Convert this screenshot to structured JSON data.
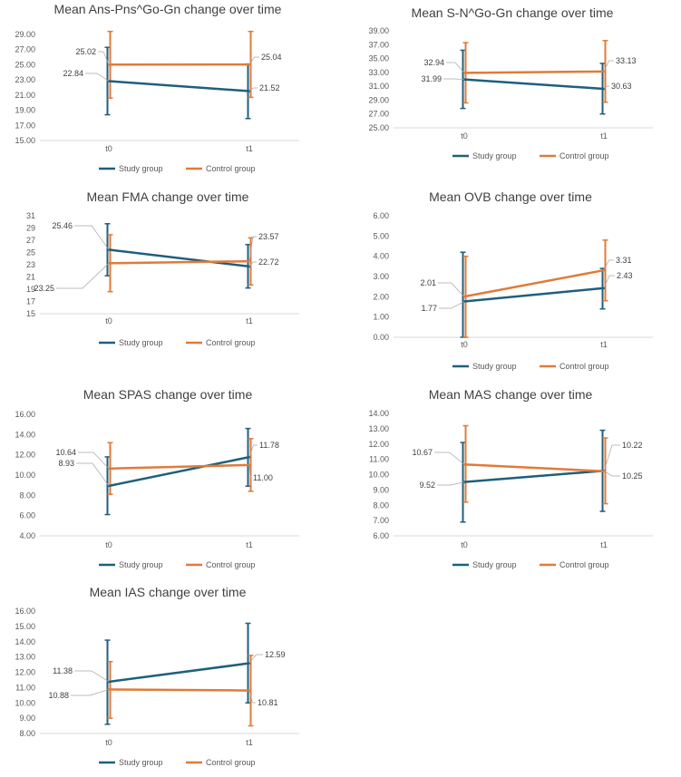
{
  "colors": {
    "study": "#1f5f7d",
    "control": "#e07b39"
  },
  "chart_data": [
    {
      "type": "line",
      "title": "Mean Ans-Pns^Go-Gn change over time",
      "categories": [
        "t0",
        "t1"
      ],
      "ylim": [
        15,
        29
      ],
      "yticks": [
        "15.00",
        "17.00",
        "19.00",
        "21.00",
        "23.00",
        "25.00",
        "27.00",
        "29.00"
      ],
      "series": [
        {
          "name": "Study group",
          "values": [
            22.84,
            21.52
          ],
          "labels": [
            "22.84",
            "21.52"
          ],
          "error": [
            [
              18.4,
              27.3
            ],
            [
              17.9,
              25.1
            ]
          ]
        },
        {
          "name": "Control group",
          "values": [
            25.02,
            25.04
          ],
          "labels": [
            "25.02",
            "25.04"
          ],
          "error": [
            [
              20.6,
              29.4
            ],
            [
              20.7,
              29.4
            ]
          ]
        }
      ]
    },
    {
      "type": "line",
      "title": "Mean S-N^Go-Gn change over time",
      "categories": [
        "t0",
        "t1"
      ],
      "ylim": [
        25,
        39
      ],
      "yticks": [
        "25.00",
        "27.00",
        "29.00",
        "31.00",
        "33.00",
        "35.00",
        "37.00",
        "39.00"
      ],
      "series": [
        {
          "name": "Study group",
          "values": [
            31.99,
            30.63
          ],
          "labels": [
            "31.99",
            "30.63"
          ],
          "error": [
            [
              27.8,
              36.2
            ],
            [
              27.0,
              34.3
            ]
          ]
        },
        {
          "name": "Control group",
          "values": [
            32.94,
            33.13
          ],
          "labels": [
            "32.94",
            "33.13"
          ],
          "error": [
            [
              28.6,
              37.3
            ],
            [
              28.7,
              37.6
            ]
          ]
        }
      ]
    },
    {
      "type": "line",
      "title": "Mean FMA change over time",
      "categories": [
        "t0",
        "t1"
      ],
      "ylim": [
        15,
        31
      ],
      "yticks": [
        "15",
        "17",
        "19",
        "21",
        "23",
        "25",
        "27",
        "29",
        "31"
      ],
      "series": [
        {
          "name": "Study group",
          "values": [
            25.46,
            22.72
          ],
          "labels": [
            "25.46",
            "22.72"
          ],
          "error": [
            [
              21.2,
              29.7
            ],
            [
              19.2,
              26.3
            ]
          ]
        },
        {
          "name": "Control group",
          "values": [
            23.25,
            23.57
          ],
          "labels": [
            "23.25",
            "23.57"
          ],
          "error": [
            [
              18.6,
              27.9
            ],
            [
              19.7,
              27.4
            ]
          ]
        }
      ]
    },
    {
      "type": "line",
      "title": "Mean OVB change over time",
      "categories": [
        "t0",
        "t1"
      ],
      "ylim": [
        0,
        6
      ],
      "yticks": [
        "0.00",
        "1.00",
        "2.00",
        "3.00",
        "4.00",
        "5.00",
        "6.00"
      ],
      "series": [
        {
          "name": "Study group",
          "values": [
            1.77,
            2.43
          ],
          "labels": [
            "1.77",
            "2.43"
          ],
          "error": [
            [
              0.0,
              4.2
            ],
            [
              1.4,
              3.4
            ]
          ]
        },
        {
          "name": "Control group",
          "values": [
            2.01,
            3.31
          ],
          "labels": [
            "2.01",
            "3.31"
          ],
          "error": [
            [
              0.0,
              4.0
            ],
            [
              1.8,
              4.8
            ]
          ]
        }
      ]
    },
    {
      "type": "line",
      "title": "Mean SPAS change over time",
      "categories": [
        "t0",
        "t1"
      ],
      "ylim": [
        4,
        16
      ],
      "yticks": [
        "4.00",
        "6.00",
        "8.00",
        "10.00",
        "12.00",
        "14.00",
        "16.00"
      ],
      "series": [
        {
          "name": "Study group",
          "values": [
            8.93,
            11.78
          ],
          "labels": [
            "8.93",
            "11.78"
          ],
          "error": [
            [
              6.1,
              11.8
            ],
            [
              8.9,
              14.6
            ]
          ]
        },
        {
          "name": "Control group",
          "values": [
            10.64,
            11.0
          ],
          "labels": [
            "10.64",
            "11.00"
          ],
          "error": [
            [
              8.1,
              13.2
            ],
            [
              8.4,
              13.6
            ]
          ]
        }
      ]
    },
    {
      "type": "line",
      "title": "Mean MAS change over time",
      "categories": [
        "t0",
        "t1"
      ],
      "ylim": [
        6,
        14
      ],
      "yticks": [
        "6.00",
        "7.00",
        "8.00",
        "9.00",
        "10.00",
        "11.00",
        "12.00",
        "13.00",
        "14.00"
      ],
      "series": [
        {
          "name": "Study group",
          "values": [
            9.52,
            10.25
          ],
          "labels": [
            "9.52",
            "10.25"
          ],
          "error": [
            [
              6.9,
              12.1
            ],
            [
              7.6,
              12.9
            ]
          ]
        },
        {
          "name": "Control group",
          "values": [
            10.67,
            10.22
          ],
          "labels": [
            "10.67",
            "10.22"
          ],
          "error": [
            [
              8.2,
              13.2
            ],
            [
              8.1,
              12.4
            ]
          ]
        }
      ]
    },
    {
      "type": "line",
      "title": "Mean IAS change over time",
      "categories": [
        "t0",
        "t1"
      ],
      "ylim": [
        8,
        16
      ],
      "yticks": [
        "8.00",
        "9.00",
        "10.00",
        "11.00",
        "12.00",
        "13.00",
        "14.00",
        "15.00",
        "16.00"
      ],
      "series": [
        {
          "name": "Study group",
          "values": [
            11.38,
            12.59
          ],
          "labels": [
            "11.38",
            "12.59"
          ],
          "error": [
            [
              8.6,
              14.1
            ],
            [
              10.0,
              15.2
            ]
          ]
        },
        {
          "name": "Control group",
          "values": [
            10.88,
            10.81
          ],
          "labels": [
            "10.88",
            "10.81"
          ],
          "error": [
            [
              9.0,
              12.7
            ],
            [
              8.5,
              13.1
            ]
          ]
        }
      ]
    }
  ]
}
